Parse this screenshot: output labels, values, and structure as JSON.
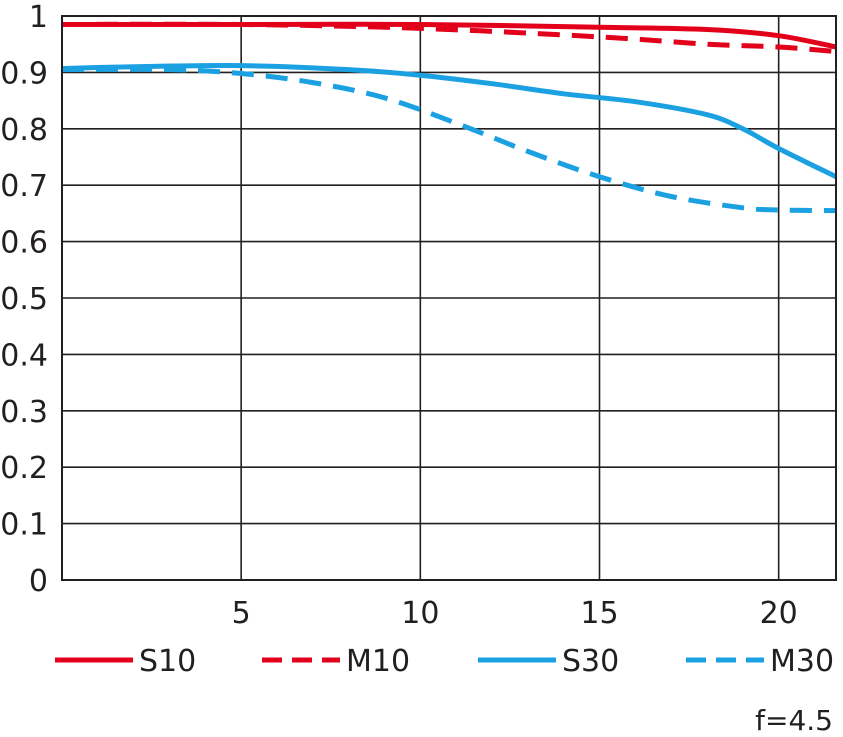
{
  "chart_data": {
    "type": "line",
    "title": "",
    "xlabel": "",
    "ylabel": "",
    "xlim": [
      0,
      21.6
    ],
    "ylim": [
      0,
      1
    ],
    "x_ticks": [
      "5",
      "10",
      "15",
      "20"
    ],
    "x_tick_values": [
      5,
      10,
      15,
      20
    ],
    "y_ticks": [
      "0",
      "0.1",
      "0.2",
      "0.3",
      "0.4",
      "0.5",
      "0.6",
      "0.7",
      "0.8",
      "0.9",
      "1"
    ],
    "y_tick_values": [
      0,
      0.1,
      0.2,
      0.3,
      0.4,
      0.5,
      0.6,
      0.7,
      0.8,
      0.9,
      1
    ],
    "grid": true,
    "legend_position": "bottom",
    "annotation": "f=4.5",
    "series": [
      {
        "name": "S10",
        "color": "#e3001b",
        "dashed": false,
        "x": [
          0,
          5,
          10,
          15,
          18,
          20,
          21.6
        ],
        "y": [
          0.985,
          0.985,
          0.985,
          0.98,
          0.976,
          0.965,
          0.945
        ]
      },
      {
        "name": "M10",
        "color": "#e3001b",
        "dashed": true,
        "x": [
          0,
          5,
          10,
          15,
          18,
          20,
          21.6
        ],
        "y": [
          0.985,
          0.985,
          0.978,
          0.963,
          0.95,
          0.945,
          0.937
        ]
      },
      {
        "name": "S30",
        "color": "#1ba1e2",
        "dashed": false,
        "x": [
          0,
          2,
          5,
          8,
          10,
          12,
          14,
          16,
          18,
          19,
          20,
          21.6
        ],
        "y": [
          0.907,
          0.91,
          0.912,
          0.905,
          0.895,
          0.88,
          0.862,
          0.848,
          0.825,
          0.8,
          0.765,
          0.715
        ]
      },
      {
        "name": "M30",
        "color": "#1ba1e2",
        "dashed": true,
        "x": [
          0,
          3,
          5,
          7,
          9,
          11,
          13,
          15,
          17,
          19,
          20,
          21.6
        ],
        "y": [
          0.905,
          0.905,
          0.898,
          0.882,
          0.855,
          0.81,
          0.76,
          0.715,
          0.68,
          0.66,
          0.656,
          0.655
        ]
      }
    ]
  }
}
